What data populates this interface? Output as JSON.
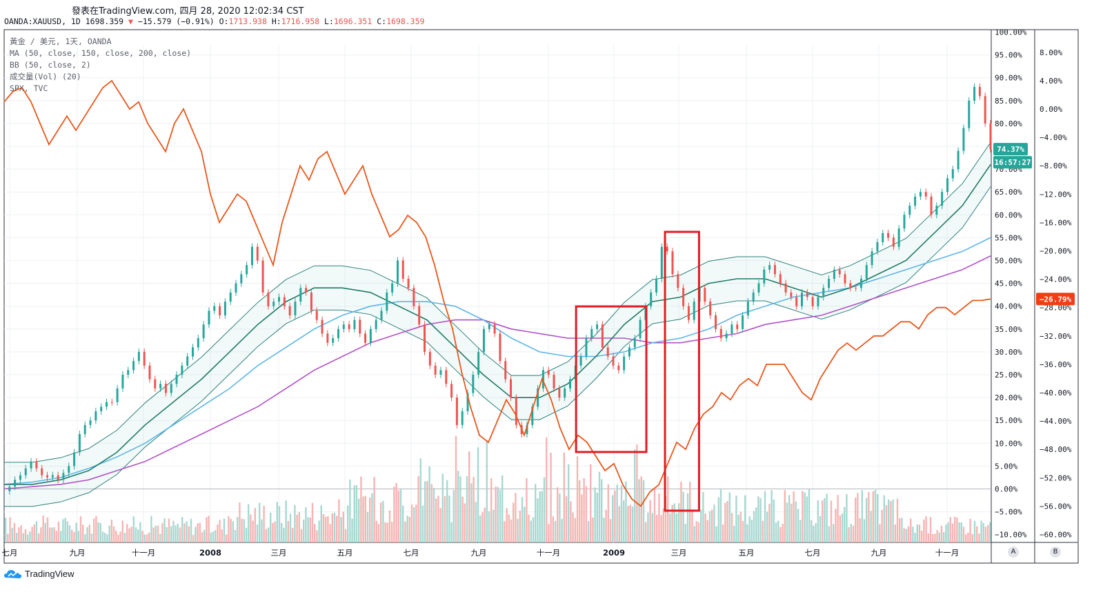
{
  "header": {
    "title": "發表在TradingView.com, 四月 28, 2020 12:02:34 CST",
    "symbol": "OANDA:XAUUSD, 1D",
    "last": "1698.359",
    "arrow": "▼",
    "change": "−15.579 (−0.91%)",
    "o_label": "O:",
    "o_val": "1713.938",
    "h_label": "H:",
    "h_val": "1716.958",
    "l_label": "L:",
    "l_val": "1696.351",
    "c_label": "C:",
    "c_val": "1698.359"
  },
  "legend": {
    "main": "黃金 / 美元, 1天, OANDA",
    "ma": "MA (50, close, 150, close, 200, close)",
    "bb": "BB (50, close, 2)",
    "vol": "成交量(Vol) (20)",
    "spx": "SPX, TVC"
  },
  "badges": {
    "gold_pct": "74.37%",
    "countdown": "16:57:27",
    "spx_pct": "−26.79%"
  },
  "footer": {
    "brand": "TradingView"
  },
  "scale_buttons": [
    "A",
    "B"
  ],
  "colors": {
    "up": "#26a69a",
    "down": "#ef5350",
    "spx": "#e8561b",
    "bb": "#2a7f7a",
    "ma50": "#1e7a66",
    "ma150": "#5bb4e8",
    "ma200": "#b150c8",
    "box": "#e01b24",
    "badge_green": "#26a69a",
    "badge_red": "#f23d14"
  },
  "chart_data": {
    "type": "line",
    "x_ticks": [
      "七月",
      "九月",
      "十一月",
      "2008",
      "三月",
      "五月",
      "七月",
      "九月",
      "十一月",
      "2009",
      "三月",
      "五月",
      "七月",
      "九月",
      "十一月"
    ],
    "left_axis_ticks": [
      "100.00%",
      "95.00%",
      "90.00%",
      "85.00%",
      "80.00%",
      "75.00%",
      "70.00%",
      "65.00%",
      "60.00%",
      "55.00%",
      "50.00%",
      "45.00%",
      "40.00%",
      "35.00%",
      "30.00%",
      "25.00%",
      "20.00%",
      "15.00%",
      "10.00%",
      "5.00%",
      "0.00%",
      "−5.00%",
      "−10.00%"
    ],
    "right_axis_ticks": [
      "8.00%",
      "4.00%",
      "0.00%",
      "−4.00%",
      "−8.00%",
      "−12.00%",
      "−16.00%",
      "−20.00%",
      "−24.00%",
      "−28.00%",
      "−32.00%",
      "−36.00%",
      "−40.00%",
      "−44.00%",
      "−48.00%",
      "−52.00%",
      "−56.00%",
      "−60.00%"
    ],
    "series": [
      {
        "name": "XAUUSD",
        "axis": "left",
        "values": [
          -0.5,
          0.5,
          2,
          3,
          4.5,
          6,
          4.5,
          3,
          2.5,
          3,
          2,
          3.5,
          5,
          8,
          12,
          14,
          15,
          17,
          18,
          19,
          19,
          22,
          25,
          26,
          28,
          30,
          27,
          24,
          22,
          23,
          21,
          23,
          25,
          27,
          29,
          31,
          33,
          36,
          39,
          40,
          38,
          41,
          43,
          45,
          47,
          49,
          53,
          50,
          43,
          40,
          41,
          42,
          40,
          38,
          41,
          44,
          43,
          39,
          37,
          34,
          32,
          33,
          35,
          36,
          35,
          37,
          34,
          32,
          35,
          37,
          39,
          43,
          45,
          50,
          46,
          44,
          40,
          36,
          30,
          27,
          25,
          26,
          23,
          20,
          14,
          17,
          21,
          25,
          30,
          35,
          36,
          34,
          28,
          24,
          20,
          14,
          12,
          14,
          18,
          22,
          26,
          25,
          22,
          20,
          22,
          24,
          27,
          29,
          33,
          35,
          36,
          31,
          29,
          27,
          26,
          29,
          31,
          33,
          37,
          40,
          43,
          46,
          53,
          52,
          47,
          44,
          40,
          37,
          41,
          44,
          41,
          38,
          35,
          33,
          34,
          36,
          35,
          38,
          41,
          43,
          45,
          48,
          49,
          47,
          45,
          43,
          42,
          40,
          43,
          42,
          40,
          42,
          44,
          46,
          48,
          47,
          45,
          44,
          44,
          46,
          49,
          52,
          54,
          56,
          55,
          53,
          57,
          60,
          62,
          64,
          65,
          64,
          60,
          62,
          65,
          68,
          70,
          74,
          79,
          85,
          88,
          86,
          80,
          74.37
        ]
      },
      {
        "name": "SPX",
        "axis": "right",
        "values": [
          1,
          2.5,
          3,
          1,
          -2,
          -5,
          -3,
          -1,
          -3,
          -1,
          1,
          3,
          4,
          2,
          0,
          1,
          -2,
          -4,
          -6,
          -2,
          0,
          -3,
          -6,
          -12,
          -16,
          -14,
          -12,
          -13,
          -16,
          -19,
          -22,
          -16,
          -12,
          -8,
          -10,
          -7,
          -6,
          -9,
          -12,
          -10,
          -8,
          -12,
          -15,
          -18,
          -17,
          -15,
          -16,
          -18,
          -22,
          -27,
          -31,
          -37,
          -42,
          -46,
          -47,
          -44,
          -41,
          -43,
          -46,
          -42,
          -38,
          -41,
          -45,
          -48,
          -46,
          -47,
          -49,
          -51,
          -50,
          -53,
          -55,
          -56,
          -54,
          -53,
          -50,
          -47,
          -48,
          -45,
          -43,
          -42,
          -40,
          -41,
          -39,
          -38,
          -39,
          -36,
          -36,
          -36,
          -38,
          -40,
          -41,
          -38,
          -36,
          -34,
          -33,
          -34,
          -33,
          -32,
          -32,
          -31,
          -30,
          -30,
          -31,
          -29,
          -28,
          -28,
          -29,
          -28,
          -27,
          -27,
          -26.79
        ],
        "ylim": [
          -60,
          8
        ]
      },
      {
        "name": "MA 50",
        "axis": "left",
        "values": [
          1,
          1,
          2,
          4,
          8,
          14,
          19,
          24,
          30,
          36,
          41,
          44,
          44,
          43,
          40,
          37,
          31,
          25,
          20,
          20,
          23,
          29,
          36,
          41,
          42,
          45,
          46,
          46,
          44,
          42,
          44,
          47,
          50,
          56,
          62,
          71
        ]
      },
      {
        "name": "MA 150",
        "axis": "left",
        "values": [
          1,
          1.5,
          2.5,
          4.5,
          7,
          10,
          14,
          18,
          22,
          27,
          31,
          35,
          38,
          40,
          41,
          41,
          40,
          37,
          33,
          30,
          29,
          29,
          30,
          32,
          33,
          35,
          38,
          40,
          42,
          43,
          44,
          46,
          48,
          50,
          52,
          55
        ]
      },
      {
        "name": "MA 200",
        "axis": "left",
        "values": [
          0,
          0.5,
          1,
          2,
          4,
          6,
          9,
          12,
          15,
          18,
          22,
          26,
          29,
          32,
          34,
          36,
          37,
          37,
          35,
          34,
          33,
          33,
          33,
          32,
          32,
          33,
          34,
          36,
          37,
          38,
          40,
          42,
          44,
          46,
          48,
          51
        ]
      }
    ],
    "annotations": [
      {
        "type": "rectangle",
        "label": "",
        "x_range": [
          "2008-11-28",
          "2009-01-31"
        ]
      },
      {
        "type": "rectangle",
        "label": "",
        "x_range": [
          "2009-02-17",
          "2009-03-20"
        ]
      }
    ],
    "left_ylim": [
      -10,
      100
    ],
    "grid": true,
    "legend_position": "top-left"
  }
}
